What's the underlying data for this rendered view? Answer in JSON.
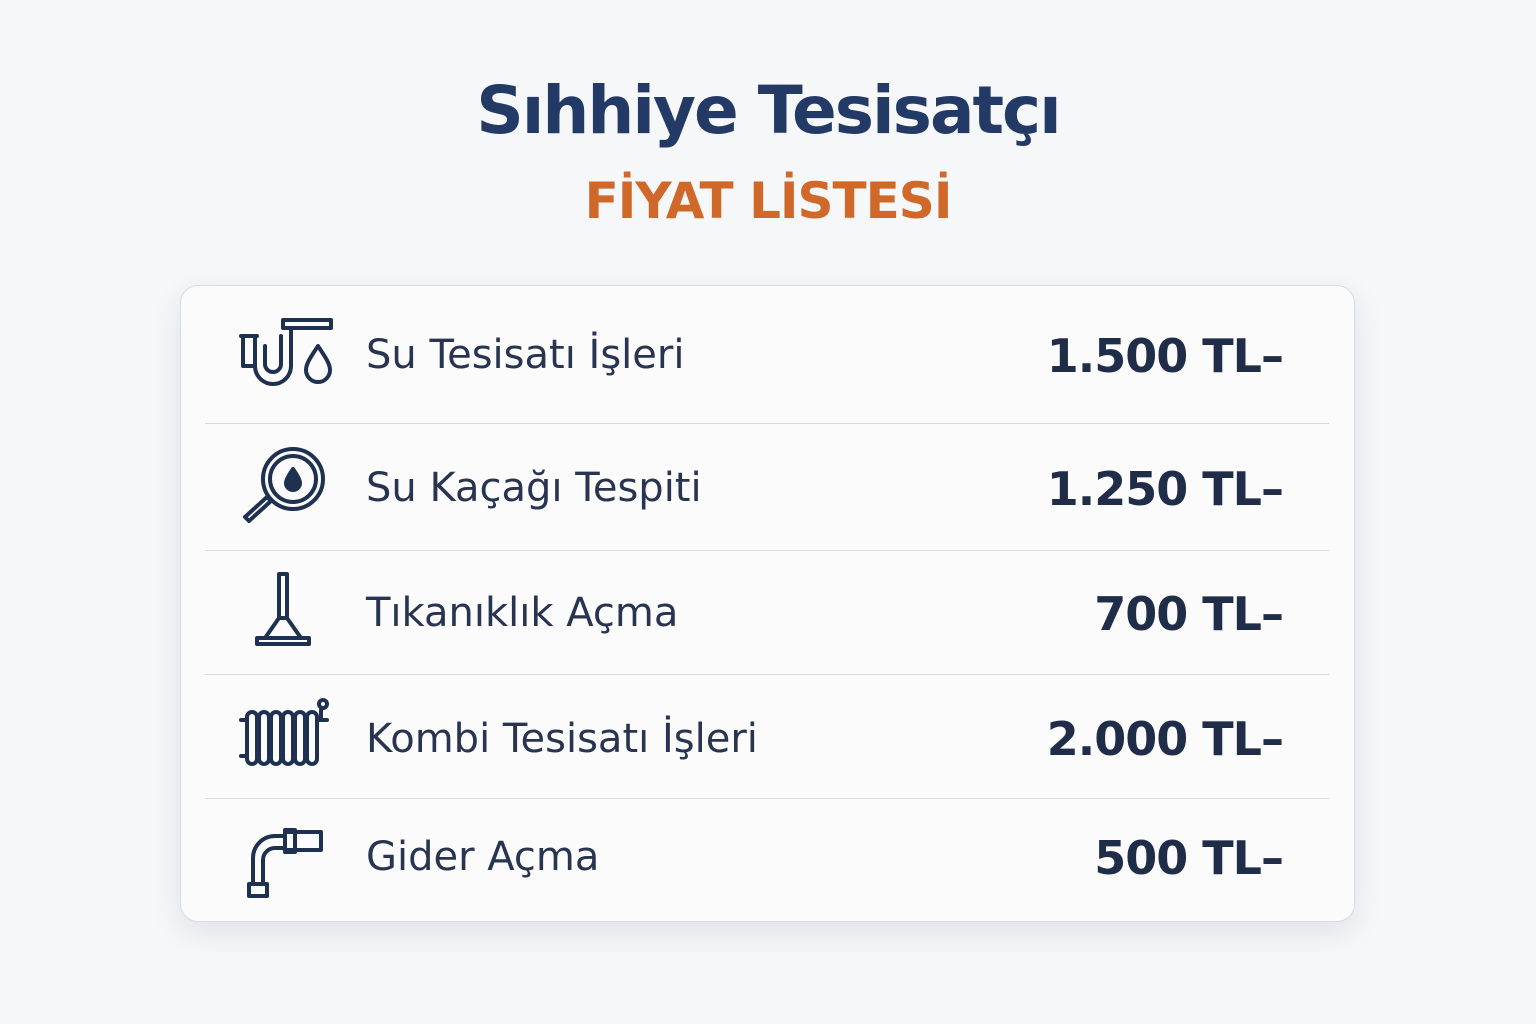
{
  "header": {
    "title": "Sıhhiye Tesisatçı",
    "subtitle": "FİYAT LİSTESİ"
  },
  "colors": {
    "title": "#233a66",
    "subtitle": "#d0682a",
    "text": "#1f2d48"
  },
  "items": [
    {
      "icon": "pipe-water-drop-icon",
      "label": "Su Tesisatı İşleri",
      "price": "1.500 TL–"
    },
    {
      "icon": "magnifier-leak-icon",
      "label": "Su Kaçağı Tespiti",
      "price": "1.250 TL–"
    },
    {
      "icon": "plunger-icon",
      "label": "Tıkanıklık Açma",
      "price": "700 TL–"
    },
    {
      "icon": "radiator-icon",
      "label": "Kombi Tesisatı İşleri",
      "price": "2.000 TL–"
    },
    {
      "icon": "elbow-pipe-icon",
      "label": "Gider Açma",
      "price": "500 TL–"
    }
  ]
}
